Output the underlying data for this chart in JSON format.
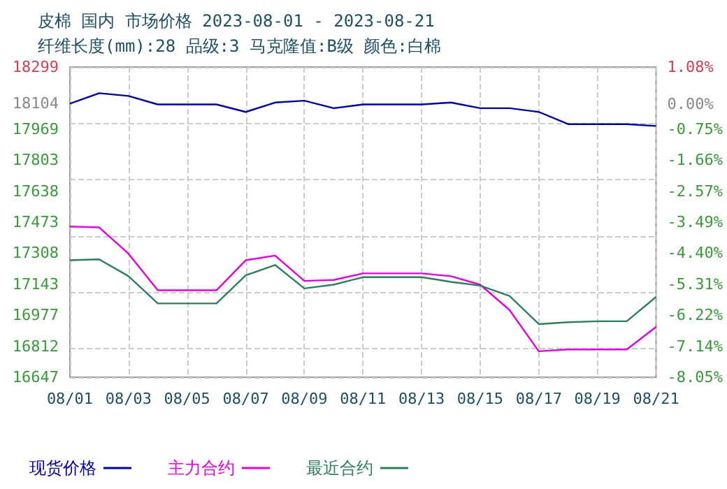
{
  "chart_data": {
    "type": "line",
    "title": "皮棉 国内 市场价格 2023-08-01 - 2023-08-21",
    "subtitle": "纤维长度(mm):28 品级:3 马克隆值:B级 颜色:白棉",
    "categories": [
      "08/01",
      null,
      "08/03",
      null,
      "08/05",
      null,
      "08/07",
      null,
      "08/09",
      null,
      "08/11",
      null,
      "08/13",
      null,
      "08/15",
      null,
      "08/17",
      null,
      "08/19",
      null,
      "08/21"
    ],
    "series": [
      {
        "name": "现货价格",
        "color": "#0000a0",
        "values": [
          18104,
          18160,
          18145,
          18100,
          18100,
          18100,
          18060,
          18110,
          18120,
          18080,
          18100,
          18100,
          18100,
          18110,
          18080,
          18080,
          18060,
          17995,
          17995,
          17995,
          17985
        ]
      },
      {
        "name": "主力合约",
        "color": "#e000e0",
        "values": [
          17450,
          17445,
          17305,
          17110,
          17110,
          17110,
          17270,
          17295,
          17160,
          17165,
          17200,
          17200,
          17200,
          17185,
          17140,
          17005,
          16785,
          16795,
          16795,
          16795,
          16915
        ]
      },
      {
        "name": "最近合约",
        "color": "#2e7d5b",
        "values": [
          17270,
          17275,
          17185,
          17040,
          17040,
          17040,
          17190,
          17245,
          17120,
          17140,
          17180,
          17180,
          17180,
          17155,
          17135,
          17080,
          16930,
          16940,
          16945,
          16945,
          17075
        ]
      }
    ],
    "ylim": [
      16647,
      18299
    ],
    "yticks": [
      16647,
      16812,
      16977,
      17143,
      17308,
      17473,
      17638,
      17803,
      17969,
      18104,
      18299
    ],
    "y2lim": [
      -8.05,
      1.08
    ],
    "y2ticks": [
      {
        "value": -8.05,
        "label": "-8.05%"
      },
      {
        "value": -7.14,
        "label": "-7.14%"
      },
      {
        "value": -6.22,
        "label": "-6.22%"
      },
      {
        "value": -5.31,
        "label": "-5.31%"
      },
      {
        "value": -4.4,
        "label": "-4.40%"
      },
      {
        "value": -3.49,
        "label": "-3.49%"
      },
      {
        "value": -2.57,
        "label": "-2.57%"
      },
      {
        "value": -1.66,
        "label": "-1.66%"
      },
      {
        "value": -0.75,
        "label": "-0.75%"
      },
      {
        "value": 0,
        "label": "0.00%"
      },
      {
        "value": 1.08,
        "label": "1.08%"
      }
    ],
    "grid": true,
    "legend": "bottom left",
    "marker": "none",
    "line_style": "solid"
  }
}
